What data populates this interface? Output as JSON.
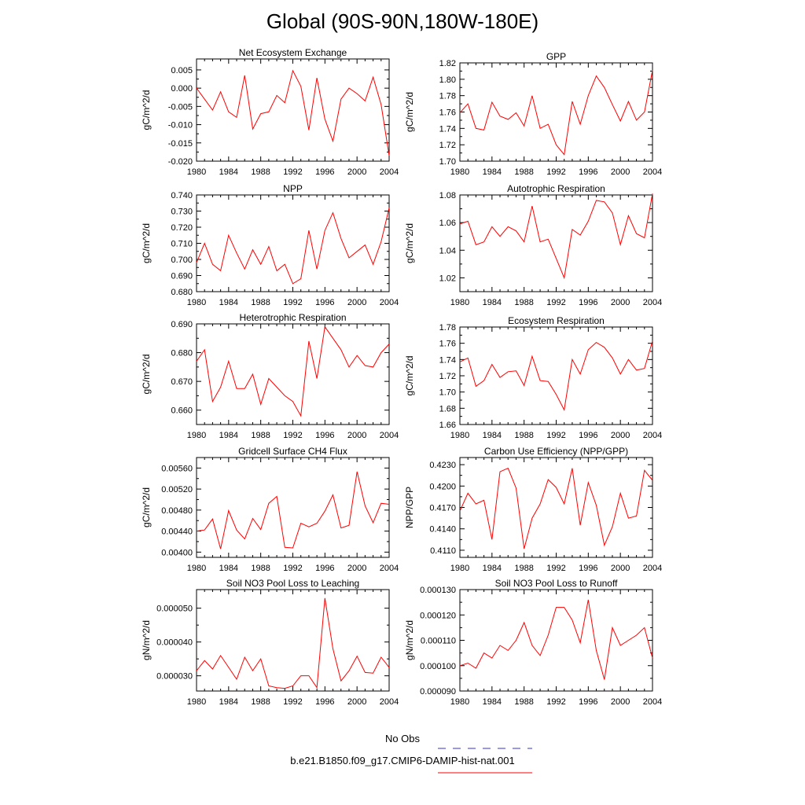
{
  "page_title": "Global (90S-90N,180W-180E)",
  "legend": {
    "entries": [
      {
        "label": "No Obs",
        "color": "#3333cc",
        "style": "dashed"
      },
      {
        "label": "b.e21.B1850.f09_g17.CMIP6-DAMIP-hist-nat.001",
        "color": "#ff0000",
        "style": "solid"
      }
    ]
  },
  "chart_data": [
    {
      "type": "line",
      "title": "Net Ecosystem Exchange",
      "ylabel": "gC/m^2/d",
      "xlim": [
        1980,
        2004
      ],
      "ylim": [
        -0.02,
        0.008
      ],
      "xticks": [
        1980,
        1984,
        1988,
        1992,
        1996,
        2000,
        2004
      ],
      "yticks": [
        -0.02,
        -0.015,
        -0.01,
        -0.005,
        0,
        0.005
      ],
      "ytick_labels": [
        "-0.020",
        "-0.015",
        "-0.010",
        "-0.005",
        "0.000",
        "0.005"
      ],
      "x": [
        1980,
        1981,
        1982,
        1983,
        1984,
        1985,
        1986,
        1987,
        1988,
        1989,
        1990,
        1991,
        1992,
        1993,
        1994,
        1995,
        1996,
        1997,
        1998,
        1999,
        2000,
        2001,
        2002,
        2003,
        2004
      ],
      "series": [
        {
          "color": "#ff0000",
          "values": [
            0.0,
            -0.003,
            -0.006,
            -0.001,
            -0.0065,
            -0.008,
            0.0035,
            -0.0112,
            -0.007,
            -0.0065,
            -0.002,
            -0.004,
            0.0048,
            0.0005,
            -0.0115,
            0.0028,
            -0.0085,
            -0.0145,
            -0.003,
            0.0,
            -0.0015,
            -0.0035,
            0.003,
            -0.0045,
            -0.0185
          ]
        }
      ]
    },
    {
      "type": "line",
      "title": "GPP",
      "ylabel": "gC/m^2/d",
      "xlim": [
        1980,
        2004
      ],
      "ylim": [
        1.7,
        1.82
      ],
      "xticks": [
        1980,
        1984,
        1988,
        1992,
        1996,
        2000,
        2004
      ],
      "yticks": [
        1.7,
        1.72,
        1.74,
        1.76,
        1.78,
        1.8,
        1.82
      ],
      "ytick_labels": [
        "1.70",
        "1.72",
        "1.74",
        "1.76",
        "1.78",
        "1.80",
        "1.82"
      ],
      "x": [
        1980,
        1981,
        1982,
        1983,
        1984,
        1985,
        1986,
        1987,
        1988,
        1989,
        1990,
        1991,
        1992,
        1993,
        1994,
        1995,
        1996,
        1997,
        1998,
        1999,
        2000,
        2001,
        2002,
        2003,
        2004
      ],
      "series": [
        {
          "color": "#ff0000",
          "values": [
            1.759,
            1.77,
            1.74,
            1.738,
            1.772,
            1.755,
            1.751,
            1.759,
            1.743,
            1.78,
            1.74,
            1.745,
            1.72,
            1.708,
            1.773,
            1.745,
            1.78,
            1.804,
            1.79,
            1.769,
            1.749,
            1.773,
            1.75,
            1.76,
            1.811
          ]
        }
      ]
    },
    {
      "type": "line",
      "title": "NPP",
      "ylabel": "gC/m^2/d",
      "xlim": [
        1980,
        2004
      ],
      "ylim": [
        0.68,
        0.74
      ],
      "xticks": [
        1980,
        1984,
        1988,
        1992,
        1996,
        2000,
        2004
      ],
      "yticks": [
        0.68,
        0.69,
        0.7,
        0.71,
        0.72,
        0.73,
        0.74
      ],
      "ytick_labels": [
        "0.680",
        "0.690",
        "0.700",
        "0.710",
        "0.720",
        "0.730",
        "0.740"
      ],
      "x": [
        1980,
        1981,
        1982,
        1983,
        1984,
        1985,
        1986,
        1987,
        1988,
        1989,
        1990,
        1991,
        1992,
        1993,
        1994,
        1995,
        1996,
        1997,
        1998,
        1999,
        2000,
        2001,
        2002,
        2003,
        2004
      ],
      "series": [
        {
          "color": "#ff0000",
          "values": [
            0.698,
            0.71,
            0.697,
            0.693,
            0.715,
            0.704,
            0.694,
            0.706,
            0.697,
            0.708,
            0.693,
            0.697,
            0.685,
            0.688,
            0.718,
            0.694,
            0.718,
            0.729,
            0.713,
            0.701,
            0.705,
            0.709,
            0.697,
            0.711,
            0.732
          ]
        }
      ]
    },
    {
      "type": "line",
      "title": "Autotrophic Respiration",
      "ylabel": "gC/m^2/d",
      "xlim": [
        1980,
        2004
      ],
      "ylim": [
        1.01,
        1.08
      ],
      "xticks": [
        1980,
        1984,
        1988,
        1992,
        1996,
        2000,
        2004
      ],
      "yticks": [
        1.02,
        1.04,
        1.06,
        1.08
      ],
      "ytick_labels": [
        "1.02",
        "1.04",
        "1.06",
        "1.08"
      ],
      "x": [
        1980,
        1981,
        1982,
        1983,
        1984,
        1985,
        1986,
        1987,
        1988,
        1989,
        1990,
        1991,
        1992,
        1993,
        1994,
        1995,
        1996,
        1997,
        1998,
        1999,
        2000,
        2001,
        2002,
        2003,
        2004
      ],
      "series": [
        {
          "color": "#ff0000",
          "values": [
            1.059,
            1.061,
            1.044,
            1.046,
            1.057,
            1.05,
            1.057,
            1.054,
            1.046,
            1.072,
            1.046,
            1.048,
            1.034,
            1.02,
            1.055,
            1.051,
            1.061,
            1.076,
            1.075,
            1.067,
            1.044,
            1.065,
            1.052,
            1.049,
            1.081
          ]
        }
      ]
    },
    {
      "type": "line",
      "title": "Heterotrophic Respiration",
      "ylabel": "gC/m^2/d",
      "xlim": [
        1980,
        2004
      ],
      "ylim": [
        0.655,
        0.69
      ],
      "xticks": [
        1980,
        1984,
        1988,
        1992,
        1996,
        2000,
        2004
      ],
      "yticks": [
        0.66,
        0.67,
        0.68,
        0.69
      ],
      "ytick_labels": [
        "0.660",
        "0.670",
        "0.680",
        "0.690"
      ],
      "x": [
        1980,
        1981,
        1982,
        1983,
        1984,
        1985,
        1986,
        1987,
        1988,
        1989,
        1990,
        1991,
        1992,
        1993,
        1994,
        1995,
        1996,
        1997,
        1998,
        1999,
        2000,
        2001,
        2002,
        2003,
        2004
      ],
      "series": [
        {
          "color": "#ff0000",
          "values": [
            0.677,
            0.681,
            0.663,
            0.668,
            0.677,
            0.6675,
            0.6675,
            0.6725,
            0.662,
            0.671,
            0.668,
            0.665,
            0.663,
            0.658,
            0.684,
            0.671,
            0.689,
            0.685,
            0.681,
            0.675,
            0.679,
            0.6755,
            0.675,
            0.68,
            0.683
          ]
        }
      ]
    },
    {
      "type": "line",
      "title": "Ecosystem Respiration",
      "ylabel": "gC/m^2/d",
      "xlim": [
        1980,
        2004
      ],
      "ylim": [
        1.66,
        1.78
      ],
      "xticks": [
        1980,
        1984,
        1988,
        1992,
        1996,
        2000,
        2004
      ],
      "yticks": [
        1.66,
        1.68,
        1.7,
        1.72,
        1.74,
        1.76,
        1.78
      ],
      "ytick_labels": [
        "1.66",
        "1.68",
        "1.70",
        "1.72",
        "1.74",
        "1.76",
        "1.78"
      ],
      "x": [
        1980,
        1981,
        1982,
        1983,
        1984,
        1985,
        1986,
        1987,
        1988,
        1989,
        1990,
        1991,
        1992,
        1993,
        1994,
        1995,
        1996,
        1997,
        1998,
        1999,
        2000,
        2001,
        2002,
        2003,
        2004
      ],
      "series": [
        {
          "color": "#ff0000",
          "values": [
            1.737,
            1.742,
            1.707,
            1.714,
            1.734,
            1.718,
            1.725,
            1.726,
            1.708,
            1.744,
            1.714,
            1.713,
            1.697,
            1.678,
            1.74,
            1.722,
            1.752,
            1.761,
            1.755,
            1.742,
            1.722,
            1.74,
            1.727,
            1.729,
            1.763
          ]
        }
      ]
    },
    {
      "type": "line",
      "title": "Gridcell Surface CH4 Flux",
      "ylabel": "gC/m^2/d",
      "xlim": [
        1980,
        2004
      ],
      "ylim": [
        0.0039,
        0.0058
      ],
      "xticks": [
        1980,
        1984,
        1988,
        1992,
        1996,
        2000,
        2004
      ],
      "yticks": [
        0.004,
        0.0044,
        0.0048,
        0.0052,
        0.0056
      ],
      "ytick_labels": [
        "0.00400",
        "0.00440",
        "0.00480",
        "0.00520",
        "0.00560"
      ],
      "x": [
        1980,
        1981,
        1982,
        1983,
        1984,
        1985,
        1986,
        1987,
        1988,
        1989,
        1990,
        1991,
        1992,
        1993,
        1994,
        1995,
        1996,
        1997,
        1998,
        1999,
        2000,
        2001,
        2002,
        2003,
        2004
      ],
      "series": [
        {
          "color": "#ff0000",
          "values": [
            0.0044,
            0.00442,
            0.00463,
            0.00406,
            0.00479,
            0.00442,
            0.00425,
            0.00464,
            0.00443,
            0.00493,
            0.00506,
            0.00409,
            0.00408,
            0.00455,
            0.00448,
            0.00455,
            0.00478,
            0.00509,
            0.00446,
            0.00451,
            0.00553,
            0.00488,
            0.00456,
            0.00493,
            0.00491
          ]
        }
      ]
    },
    {
      "type": "line",
      "title": "Carbon Use Efficiency (NPP/GPP)",
      "ylabel": "NPP/GPP",
      "xlim": [
        1980,
        2004
      ],
      "ylim": [
        0.41,
        0.424
      ],
      "xticks": [
        1980,
        1984,
        1988,
        1992,
        1996,
        2000,
        2004
      ],
      "yticks": [
        0.411,
        0.414,
        0.417,
        0.42,
        0.423
      ],
      "ytick_labels": [
        "0.4110",
        "0.4140",
        "0.4170",
        "0.4200",
        "0.4230"
      ],
      "x": [
        1980,
        1981,
        1982,
        1983,
        1984,
        1985,
        1986,
        1987,
        1988,
        1989,
        1990,
        1991,
        1992,
        1993,
        1994,
        1995,
        1996,
        1997,
        1998,
        1999,
        2000,
        2001,
        2002,
        2003,
        2004
      ],
      "series": [
        {
          "color": "#ff0000",
          "values": [
            0.4165,
            0.419,
            0.4175,
            0.418,
            0.4125,
            0.422,
            0.4225,
            0.4197,
            0.4112,
            0.4155,
            0.4175,
            0.4209,
            0.4198,
            0.4175,
            0.4225,
            0.4145,
            0.4205,
            0.4173,
            0.4117,
            0.4143,
            0.419,
            0.4155,
            0.4158,
            0.4222,
            0.4208
          ]
        }
      ]
    },
    {
      "type": "line",
      "title": "Soil NO3 Pool Loss to Leaching",
      "ylabel": "gN/m^2/d",
      "xlim": [
        1980,
        2004
      ],
      "ylim": [
        2.55e-05,
        5.55e-05
      ],
      "xticks": [
        1980,
        1984,
        1988,
        1992,
        1996,
        2000,
        2004
      ],
      "yticks": [
        3e-05,
        4e-05,
        5e-05
      ],
      "ytick_labels": [
        "0.000030",
        "0.000040",
        "0.000050"
      ],
      "x": [
        1980,
        1981,
        1982,
        1983,
        1984,
        1985,
        1986,
        1987,
        1988,
        1989,
        1990,
        1991,
        1992,
        1993,
        1994,
        1995,
        1996,
        1997,
        1998,
        1999,
        2000,
        2001,
        2002,
        2003,
        2004
      ],
      "series": [
        {
          "color": "#ff0000",
          "values": [
            3.15e-05,
            3.45e-05,
            3.2e-05,
            3.6e-05,
            3.25e-05,
            2.9e-05,
            3.55e-05,
            3.15e-05,
            3.5e-05,
            2.7e-05,
            2.65e-05,
            2.63e-05,
            2.7e-05,
            3e-05,
            3e-05,
            2.65e-05,
            5.3e-05,
            3.8e-05,
            2.85e-05,
            3.15e-05,
            3.58e-05,
            3.1e-05,
            3.08e-05,
            3.55e-05,
            3.25e-05
          ]
        }
      ]
    },
    {
      "type": "line",
      "title": "Soil NO3 Pool Loss to Runoff",
      "ylabel": "gN/m^2/d",
      "xlim": [
        1980,
        2004
      ],
      "ylim": [
        9e-05,
        0.00013
      ],
      "xticks": [
        1980,
        1984,
        1988,
        1992,
        1996,
        2000,
        2004
      ],
      "yticks": [
        9e-05,
        0.0001,
        0.00011,
        0.00012,
        0.00013
      ],
      "ytick_labels": [
        "0.000090",
        "0.000100",
        "0.000110",
        "0.000120",
        "0.000130"
      ],
      "x": [
        1980,
        1981,
        1982,
        1983,
        1984,
        1985,
        1986,
        1987,
        1988,
        1989,
        1990,
        1991,
        1992,
        1993,
        1994,
        1995,
        1996,
        1997,
        1998,
        1999,
        2000,
        2001,
        2002,
        2003,
        2004
      ],
      "series": [
        {
          "color": "#ff0000",
          "values": [
            0.0001,
            0.000101,
            9.9e-05,
            0.000105,
            0.000103,
            0.000108,
            0.000106,
            0.00011,
            0.000117,
            0.000108,
            0.000104,
            0.000112,
            0.000123,
            0.000123,
            0.000118,
            0.000109,
            0.000126,
            0.000106,
            9.45e-05,
            0.000115,
            0.000108,
            0.00011,
            0.000112,
            0.000115,
            0.000103
          ]
        }
      ]
    }
  ]
}
